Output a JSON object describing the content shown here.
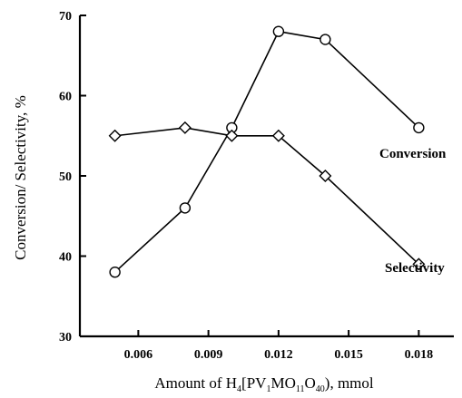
{
  "chart_data": {
    "type": "line",
    "xlabel": "Amount of H",
    "xlabel_parts": [
      {
        "text": "Amount of H",
        "sub": false
      },
      {
        "text": "4",
        "sub": true
      },
      {
        "text": "[PV",
        "sub": false
      },
      {
        "text": "1",
        "sub": true
      },
      {
        "text": "MO",
        "sub": false
      },
      {
        "text": "11",
        "sub": true
      },
      {
        "text": "O",
        "sub": false
      },
      {
        "text": "40",
        "sub": true
      },
      {
        "text": "), mmol",
        "sub": false
      }
    ],
    "ylabel": "Conversion/ Selectivity, %",
    "xlim": [
      0.0035,
      0.0195
    ],
    "ylim": [
      30,
      70
    ],
    "xticks": [
      "0.006",
      "0.009",
      "0.012",
      "0.015",
      "0.018"
    ],
    "yticks": [
      "30",
      "40",
      "50",
      "60",
      "70"
    ],
    "grid": false,
    "series": [
      {
        "name": "Conversion",
        "marker": "circle",
        "x": [
          0.005,
          0.008,
          0.01,
          0.012,
          0.014,
          0.018
        ],
        "y": [
          38,
          46,
          56,
          68,
          67,
          56
        ]
      },
      {
        "name": "Selectivity",
        "marker": "diamond",
        "x": [
          0.005,
          0.008,
          0.01,
          0.012,
          0.014,
          0.018
        ],
        "y": [
          55,
          56,
          55,
          55,
          50,
          39
        ]
      }
    ]
  }
}
